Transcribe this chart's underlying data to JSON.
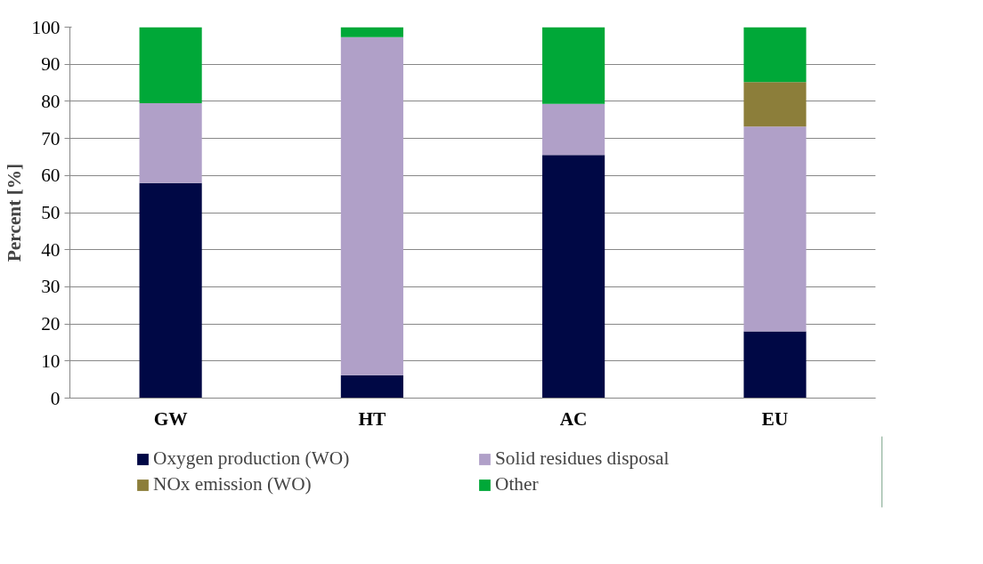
{
  "chart_data": {
    "type": "bar",
    "stacked": true,
    "ylabel": "Percent [%]",
    "categories": [
      "GW",
      "HT",
      "AC",
      "EU"
    ],
    "series": [
      {
        "name": "Oxygen production (WO)",
        "color": "#000845",
        "values": [
          58,
          6.2,
          65.5,
          18
        ]
      },
      {
        "name": "Solid residues disposal",
        "color": "#b0a0c8",
        "values": [
          21.5,
          91.1,
          13.8,
          55.2
        ]
      },
      {
        "name": "NOx emission (WO)",
        "color": "#8c7e3a",
        "values": [
          0,
          0,
          0,
          12
        ]
      },
      {
        "name": "Other",
        "color": "#00a838",
        "values": [
          20.5,
          2.7,
          20.7,
          14.8
        ]
      }
    ],
    "ylim": [
      0,
      100
    ],
    "yticks": [
      0,
      10,
      20,
      30,
      40,
      50,
      60,
      70,
      80,
      90,
      100
    ],
    "grid": "y",
    "legend": "bottom"
  }
}
